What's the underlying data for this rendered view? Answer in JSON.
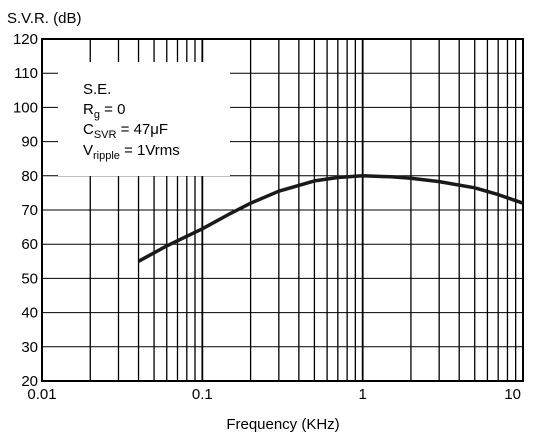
{
  "chart_data": {
    "type": "line",
    "title": "",
    "ylabel": "S.V.R. (dB)",
    "xlabel": "Frequency (KHz)",
    "x_scale": "log",
    "xlim": [
      0.01,
      10
    ],
    "ylim": [
      20,
      120
    ],
    "x_ticks": [
      {
        "value": 0.01,
        "label": "0.01"
      },
      {
        "value": 0.1,
        "label": "0.1"
      },
      {
        "value": 1,
        "label": "1"
      },
      {
        "value": 10,
        "label": "10"
      }
    ],
    "y_ticks": [
      20,
      30,
      40,
      50,
      60,
      70,
      80,
      90,
      100,
      110,
      120
    ],
    "grid": true,
    "annotation": {
      "line1": "S.E.",
      "line2_main": "R",
      "line2_sub": "g",
      "line2_rest": " = 0",
      "line3_main": "C",
      "line3_sub": "SVR",
      "line3_rest": " = 47μF",
      "line4_main": "V",
      "line4_sub": "ripple",
      "line4_rest": " = 1Vrms"
    },
    "series": [
      {
        "x": [
          0.04,
          0.06,
          0.1,
          0.15,
          0.2,
          0.3,
          0.5,
          0.7,
          1,
          1.5,
          2,
          3,
          5,
          7,
          10
        ],
        "y": [
          55,
          59.5,
          64.5,
          69,
          72,
          75.5,
          78.5,
          79.5,
          80,
          79.7,
          79.3,
          78.3,
          76.5,
          74.5,
          72
        ]
      }
    ],
    "colors": {
      "line": "#1a1a1a",
      "grid": "#000000",
      "background": "#ffffff"
    }
  }
}
